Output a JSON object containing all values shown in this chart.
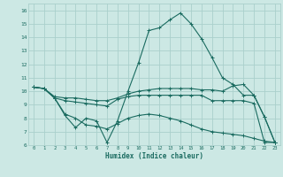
{
  "xlabel": "Humidex (Indice chaleur)",
  "xlim": [
    -0.5,
    23.5
  ],
  "ylim": [
    6,
    16.5
  ],
  "yticks": [
    6,
    7,
    8,
    9,
    10,
    11,
    12,
    13,
    14,
    15,
    16
  ],
  "xticks": [
    0,
    1,
    2,
    3,
    4,
    5,
    6,
    7,
    8,
    9,
    10,
    11,
    12,
    13,
    14,
    15,
    16,
    17,
    18,
    19,
    20,
    21,
    22,
    23
  ],
  "bg_color": "#cce8e4",
  "grid_color": "#aad0cc",
  "line_color": "#1a6b60",
  "lines": [
    {
      "x": [
        0,
        1,
        2,
        3,
        4,
        5,
        6,
        7,
        8,
        9,
        10,
        11,
        12,
        13,
        14,
        15,
        16,
        17,
        18,
        19,
        20,
        21,
        22,
        23
      ],
      "y": [
        10.3,
        10.2,
        9.5,
        8.2,
        7.3,
        8.0,
        7.8,
        6.2,
        7.8,
        10.0,
        12.1,
        14.5,
        14.7,
        15.3,
        15.8,
        15.0,
        13.9,
        12.5,
        11.0,
        10.5,
        9.7,
        9.7,
        8.1,
        6.2
      ]
    },
    {
      "x": [
        0,
        1,
        2,
        3,
        4,
        5,
        6,
        7,
        8,
        9,
        10,
        11,
        12,
        13,
        14,
        15,
        16,
        17,
        18,
        19,
        20,
        21,
        22,
        23
      ],
      "y": [
        10.3,
        10.2,
        9.6,
        9.5,
        9.5,
        9.4,
        9.3,
        9.3,
        9.5,
        9.8,
        10.0,
        10.1,
        10.2,
        10.2,
        10.2,
        10.2,
        10.1,
        10.1,
        10.0,
        10.4,
        10.5,
        9.7,
        8.1,
        6.2
      ]
    },
    {
      "x": [
        0,
        1,
        2,
        3,
        4,
        5,
        6,
        7,
        8,
        9,
        10,
        11,
        12,
        13,
        14,
        15,
        16,
        17,
        18,
        19,
        20,
        21,
        22,
        23
      ],
      "y": [
        10.3,
        10.2,
        9.5,
        9.3,
        9.2,
        9.1,
        9.0,
        8.9,
        9.4,
        9.6,
        9.7,
        9.7,
        9.7,
        9.7,
        9.7,
        9.7,
        9.7,
        9.3,
        9.3,
        9.3,
        9.3,
        9.1,
        6.2,
        6.2
      ]
    },
    {
      "x": [
        0,
        1,
        2,
        3,
        4,
        5,
        6,
        7,
        8,
        9,
        10,
        11,
        12,
        13,
        14,
        15,
        16,
        17,
        18,
        19,
        20,
        21,
        22,
        23
      ],
      "y": [
        10.3,
        10.2,
        9.5,
        8.3,
        8.0,
        7.5,
        7.4,
        7.2,
        7.6,
        8.0,
        8.2,
        8.3,
        8.2,
        8.0,
        7.8,
        7.5,
        7.2,
        7.0,
        6.9,
        6.8,
        6.7,
        6.5,
        6.3,
        6.2
      ]
    }
  ]
}
